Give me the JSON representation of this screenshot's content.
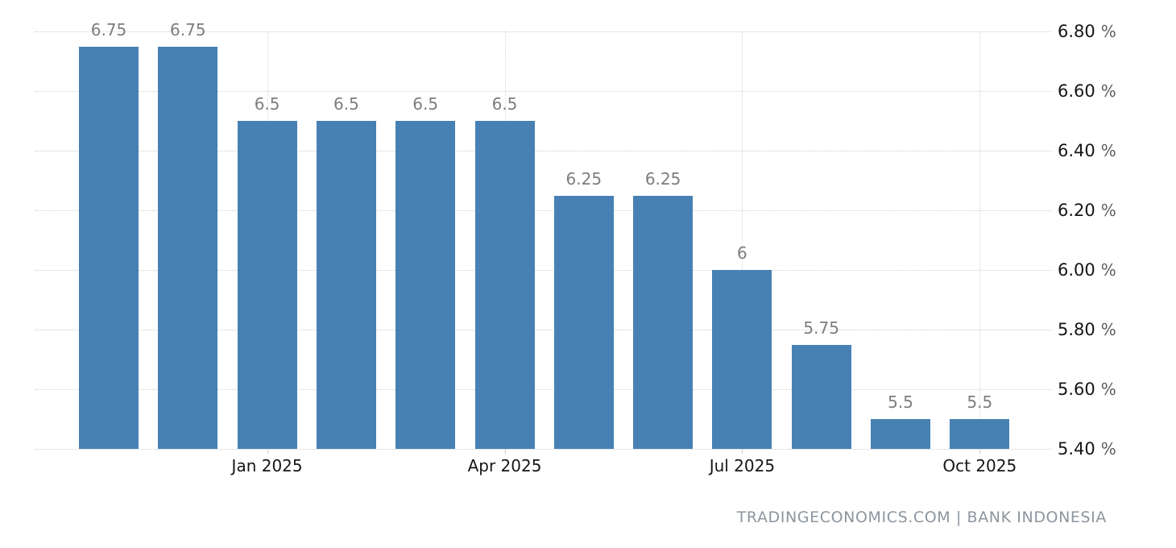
{
  "chart_data": {
    "type": "bar",
    "title": "",
    "xlabel": "",
    "ylabel": "",
    "values": [
      6.75,
      6.75,
      6.5,
      6.5,
      6.5,
      6.5,
      6.25,
      6.25,
      6,
      5.75,
      5.5,
      5.5
    ],
    "bar_labels": [
      "6.75",
      "6.75",
      "6.5",
      "6.5",
      "6.5",
      "6.5",
      "6.25",
      "6.25",
      "6",
      "5.75",
      "5.5",
      "5.5"
    ],
    "x_ticks": [
      {
        "label": "Jan 2025",
        "bar_index": 2
      },
      {
        "label": "Apr 2025",
        "bar_index": 5
      },
      {
        "label": "Jul 2025",
        "bar_index": 8
      },
      {
        "label": "Oct 2025",
        "bar_index": 11
      }
    ],
    "y_ticks": [
      {
        "value": 6.8,
        "label": "6.80",
        "suffix": "%"
      },
      {
        "value": 6.6,
        "label": "6.60",
        "suffix": "%"
      },
      {
        "value": 6.4,
        "label": "6.40",
        "suffix": "%"
      },
      {
        "value": 6.2,
        "label": "6.20",
        "suffix": "%"
      },
      {
        "value": 6.0,
        "label": "6.00",
        "suffix": "%"
      },
      {
        "value": 5.8,
        "label": "5.80",
        "suffix": "%"
      },
      {
        "value": 5.6,
        "label": "5.60",
        "suffix": "%"
      },
      {
        "value": 5.4,
        "label": "5.40",
        "suffix": "%"
      }
    ],
    "ylim": [
      5.4,
      6.8
    ],
    "y_step": 0.2,
    "grid": "dotted",
    "legend": "none",
    "colors": {
      "bar": "#4781b4",
      "grid_h": "#cfcfcf",
      "grid_v": "#d8d8d8",
      "tick": "#cccccc",
      "data_label": "#7d7d7d",
      "axis_text": "#161616",
      "pct_sign": "#5d5d5d",
      "attribution_text": "#8d959e"
    }
  },
  "footer": {
    "attribution": "TRADINGECONOMICS.COM | BANK INDONESIA"
  }
}
